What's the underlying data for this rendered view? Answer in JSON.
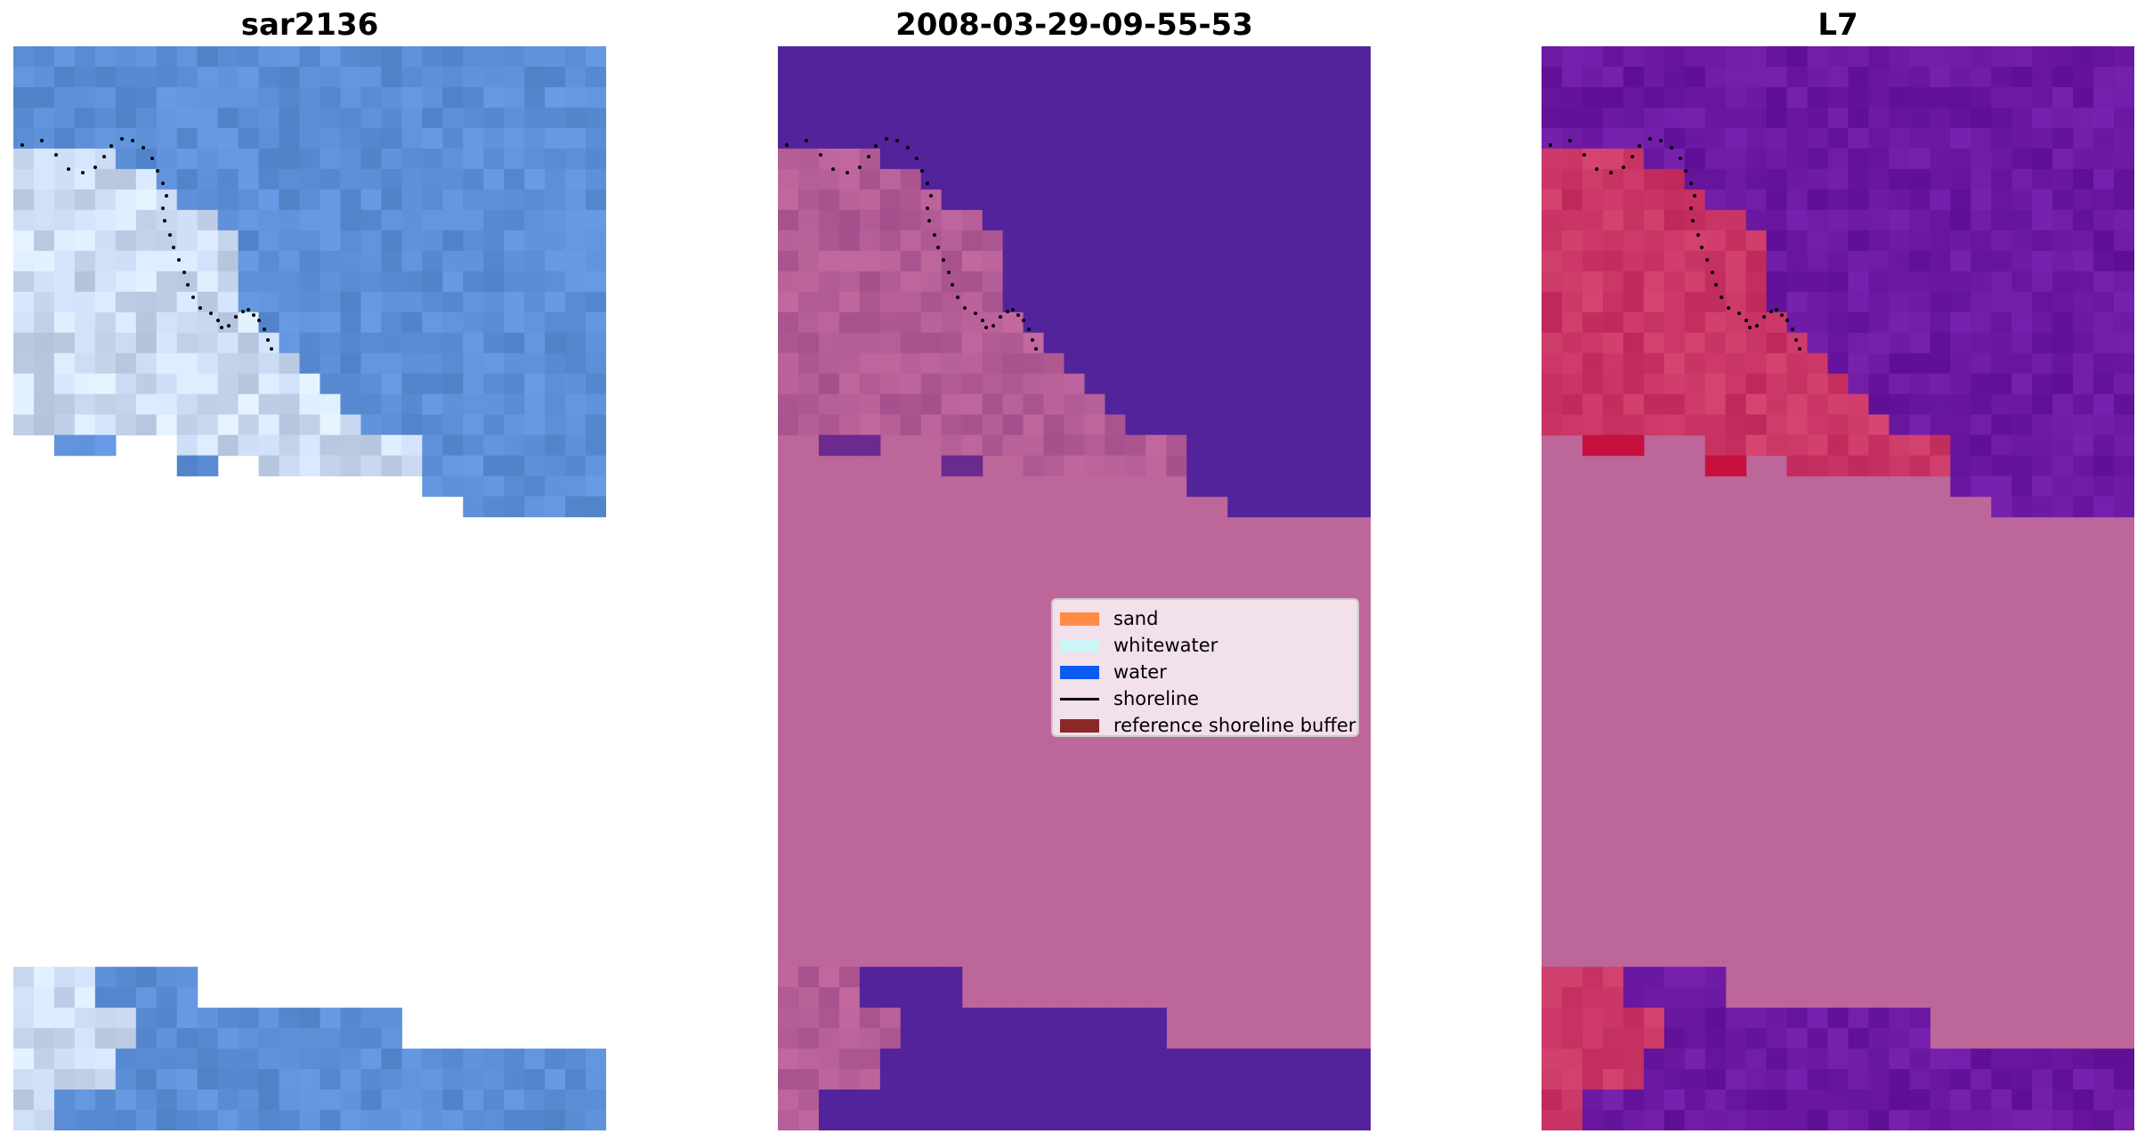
{
  "panels": [
    {
      "title": "sar2136",
      "style": "rgb"
    },
    {
      "title": "2008-03-29-09-55-53",
      "style": "classified"
    },
    {
      "title": "L7",
      "style": "index"
    }
  ],
  "legend": {
    "items": [
      {
        "label": "sand",
        "color": "#ff8c42",
        "kind": "patch"
      },
      {
        "label": "whitewater",
        "color": "#ccf5f7",
        "kind": "patch"
      },
      {
        "label": "water",
        "color": "#0a5cf0",
        "kind": "patch"
      },
      {
        "label": "shoreline",
        "color": "#000000",
        "kind": "line"
      },
      {
        "label": "reference shoreline buffer",
        "color": "#8b2727",
        "kind": "patch"
      }
    ]
  },
  "colors": {
    "background": "#ffffff",
    "rgb_water": "#5b8bd6",
    "rgb_whitewater": "#e8eef8",
    "class_background": "#bd6699",
    "class_water": "#52239a",
    "class_land": "#a55a98",
    "index_background": "#bd6699",
    "index_water": "#6a179a",
    "index_land": "#c52f63",
    "shoreline": "#000000"
  }
}
